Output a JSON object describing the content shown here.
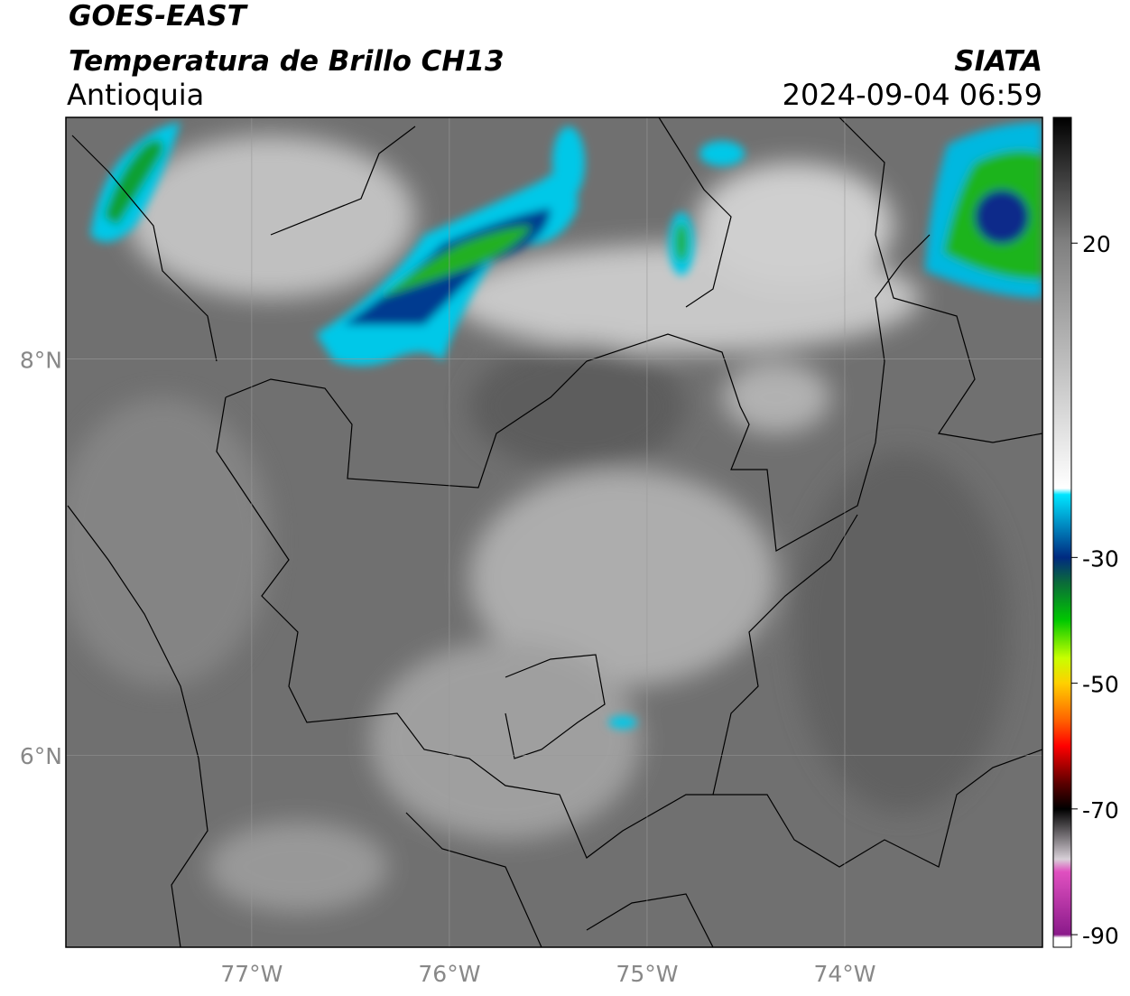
{
  "header": {
    "satellite": "GOES-EAST",
    "product": "Temperatura de Brillo CH13",
    "region": "Antioquia",
    "source": "SIATA",
    "datetime": "2024-09-04 06:59"
  },
  "map": {
    "lon_range": [
      -77.94,
      -73.0
    ],
    "lat_range": [
      5.03,
      9.22
    ],
    "lon_ticks": [
      {
        "value": -77,
        "label": "77°W"
      },
      {
        "value": -76,
        "label": "76°W"
      },
      {
        "value": -75,
        "label": "75°W"
      },
      {
        "value": -74,
        "label": "74°W"
      }
    ],
    "lat_ticks": [
      {
        "value": 6,
        "label": "6°N"
      },
      {
        "value": 8,
        "label": "8°N"
      }
    ],
    "grid": true
  },
  "colorbar": {
    "range": [
      -92,
      40
    ],
    "ticks": [
      20,
      -30,
      -50,
      -70,
      -90
    ],
    "stops": [
      {
        "value": 40,
        "color": "#000000"
      },
      {
        "value": 20,
        "color": "#808080"
      },
      {
        "value": -19,
        "color": "#ffffff"
      },
      {
        "value": -20,
        "color": "#00e5ff"
      },
      {
        "value": -30,
        "color": "#002a80"
      },
      {
        "value": -34,
        "color": "#0b6b3a"
      },
      {
        "value": -40,
        "color": "#00c800"
      },
      {
        "value": -46,
        "color": "#c8ff00"
      },
      {
        "value": -50,
        "color": "#ffd000"
      },
      {
        "value": -56,
        "color": "#ff6000"
      },
      {
        "value": -60,
        "color": "#ff0000"
      },
      {
        "value": -66,
        "color": "#5a0000"
      },
      {
        "value": -70,
        "color": "#000000"
      },
      {
        "value": -78,
        "color": "#d8d0d8"
      },
      {
        "value": -80,
        "color": "#e050c0"
      },
      {
        "value": -90,
        "color": "#8a1a8a"
      },
      {
        "value": -90.5,
        "color": "#ffffff"
      },
      {
        "value": -92,
        "color": "#ffffff"
      }
    ]
  }
}
